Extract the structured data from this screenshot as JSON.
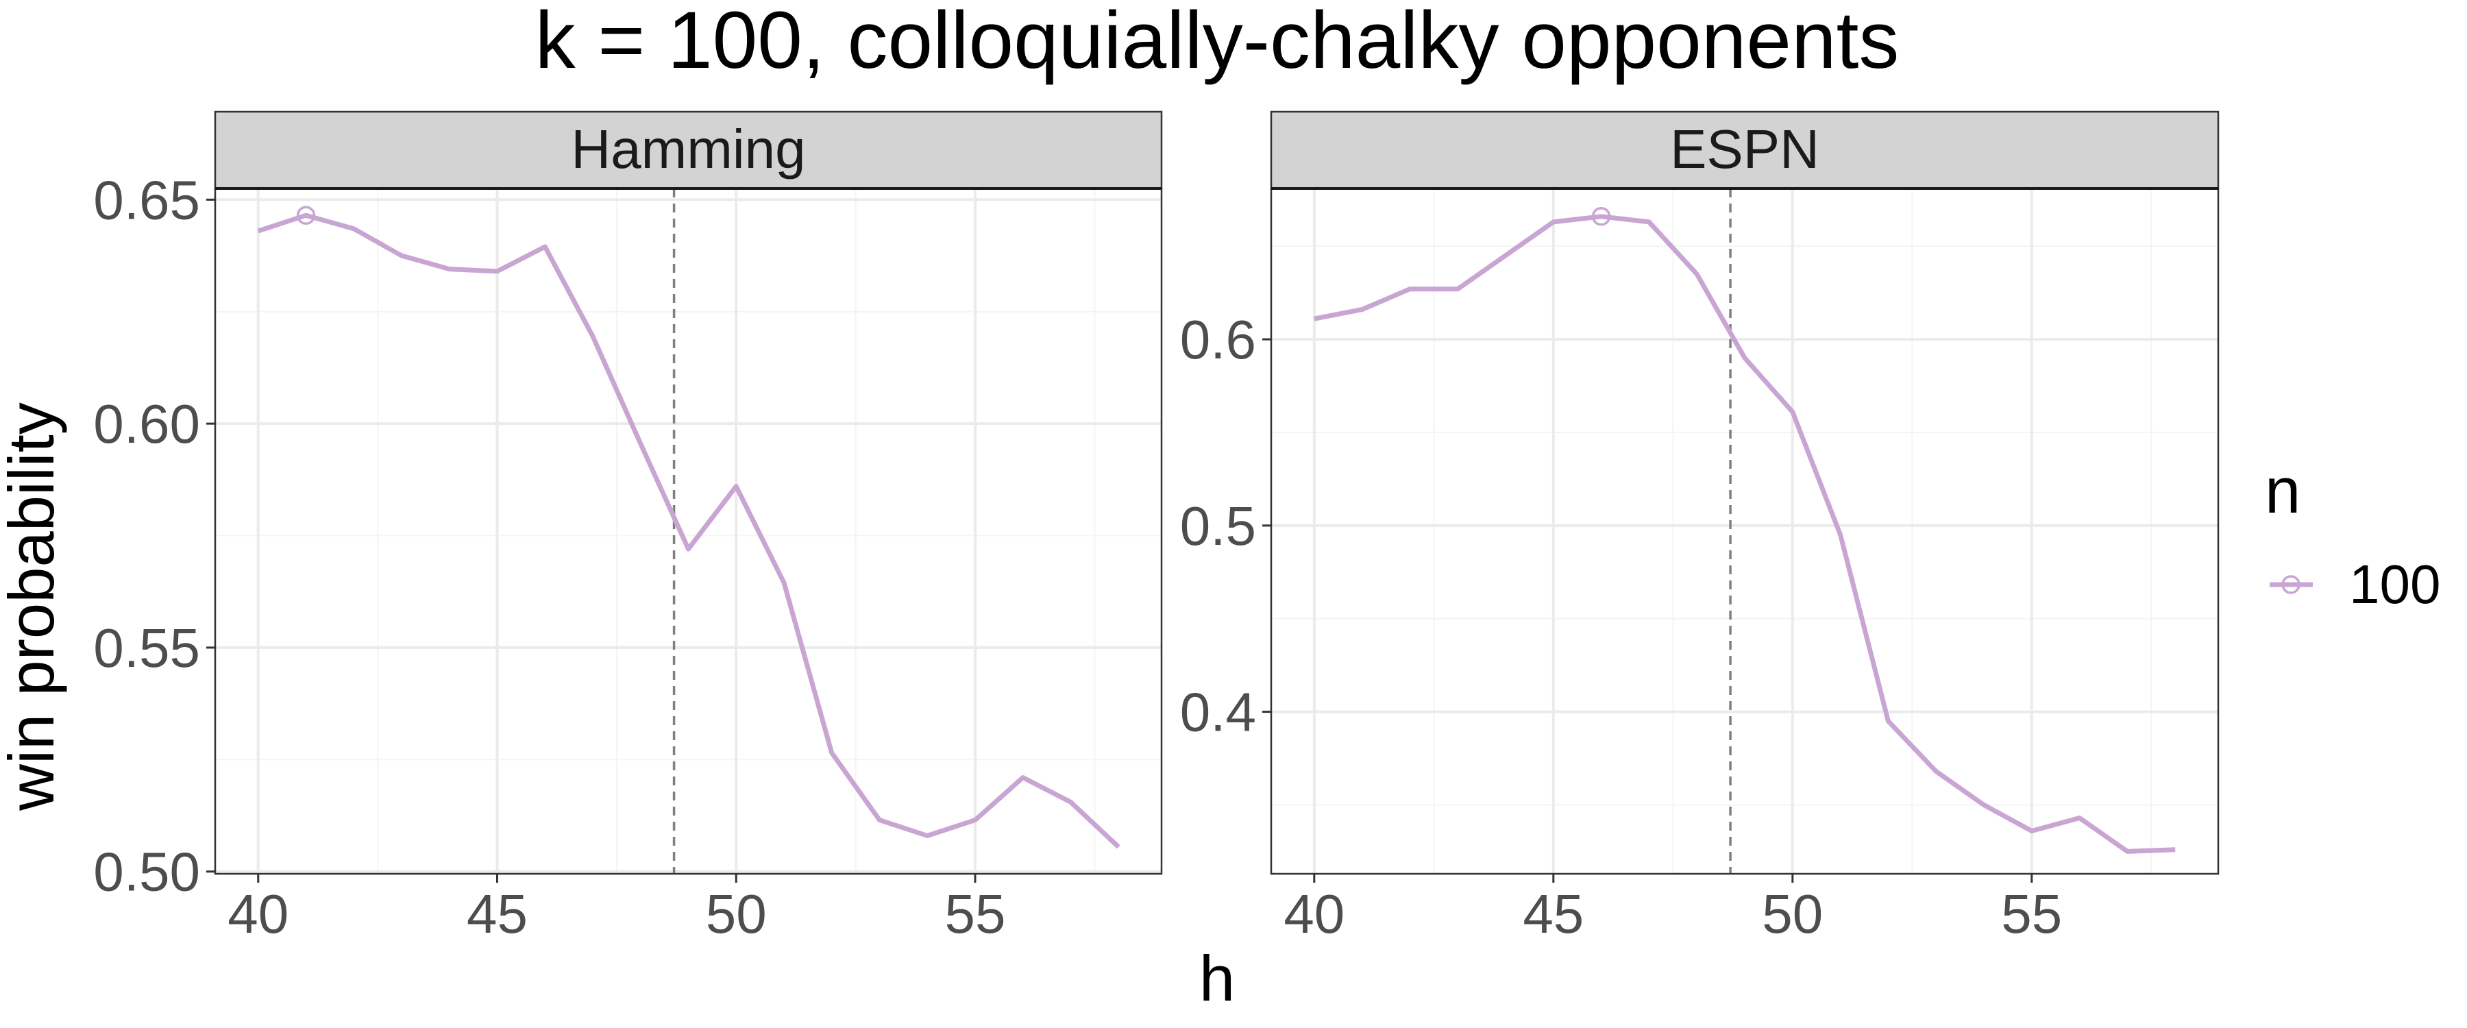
{
  "title": "k = 100, colloquially-chalky opponents",
  "xlabel": "h",
  "ylabel": "win probability",
  "legend": {
    "title": "n",
    "entries": [
      "100"
    ],
    "placement": "right"
  },
  "colors": {
    "line": "#c9a5d3",
    "strip": "#d3d3d3",
    "grid_major": "#ebebeb",
    "grid_minor": "#f4f4f4",
    "vline": "#7f7f7f",
    "axis_text": "#4d4d4d"
  },
  "chart_data": [
    {
      "type": "line",
      "panel": "Hamming",
      "x": [
        40,
        41,
        42,
        43,
        44,
        45,
        46,
        47,
        48,
        49,
        50,
        51,
        52,
        53,
        54,
        55,
        56,
        57,
        58
      ],
      "series": [
        {
          "name": "100",
          "values": [
            0.643,
            0.6465,
            0.6435,
            0.6375,
            0.6345,
            0.634,
            0.6395,
            0.6195,
            0.5955,
            0.572,
            0.586,
            0.5645,
            0.5265,
            0.5115,
            0.508,
            0.5115,
            0.521,
            0.5155,
            0.5055
          ]
        }
      ],
      "marker": {
        "x": 41,
        "y": 0.6465
      },
      "vline_x": 48.7,
      "xlim": [
        39.1,
        58.9
      ],
      "ylim": [
        0.4995,
        0.6525
      ],
      "xticks": [
        "40",
        "45",
        "50",
        "55"
      ],
      "yticks": [
        "0.50",
        "0.55",
        "0.60",
        "0.65"
      ]
    },
    {
      "type": "line",
      "panel": "ESPN",
      "x": [
        40,
        41,
        42,
        43,
        44,
        45,
        46,
        47,
        48,
        49,
        50,
        51,
        52,
        53,
        54,
        55,
        56,
        57,
        58
      ],
      "series": [
        {
          "name": "100",
          "values": [
            0.611,
            0.616,
            0.627,
            0.627,
            0.645,
            0.663,
            0.666,
            0.663,
            0.635,
            0.59,
            0.561,
            0.495,
            0.395,
            0.368,
            0.35,
            0.336,
            0.343,
            0.325,
            0.326
          ]
        }
      ],
      "marker": {
        "x": 46,
        "y": 0.666
      },
      "vline_x": 48.7,
      "xlim": [
        39.1,
        58.9
      ],
      "ylim": [
        0.313,
        0.681
      ],
      "xticks": [
        "40",
        "45",
        "50",
        "55"
      ],
      "yticks": [
        "0.4",
        "0.5",
        "0.6"
      ]
    }
  ]
}
